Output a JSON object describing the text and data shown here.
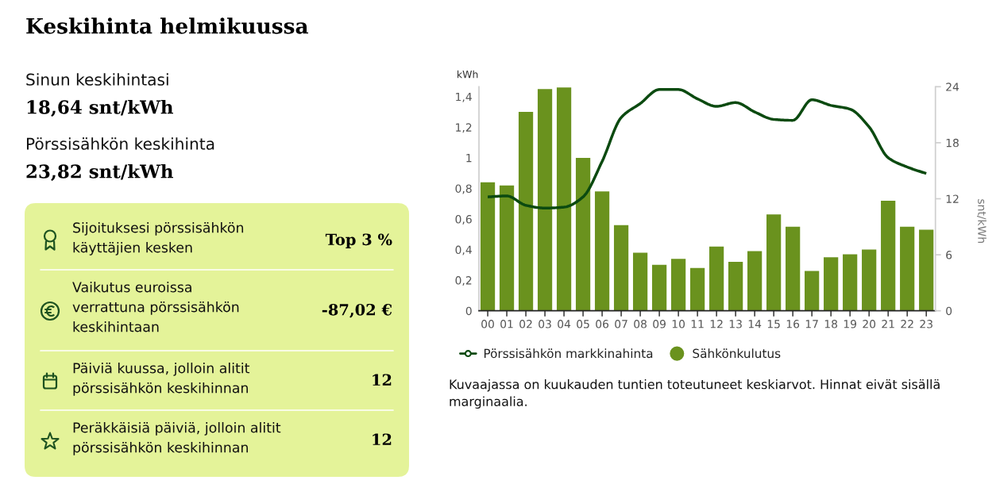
{
  "chart_data": [
    {
      "type": "other",
      "title": "Keskihinta helmikuussa",
      "annotations": [
        "Sinun keskihintasi",
        "18,64 snt/kWh",
        "Pörssisähkön keskihinta",
        "23,82 snt/kWh",
        "Sijoituksesi pörssisähkön\nkäyttäjien kesken",
        "Top 3 %",
        "Vaikutus euroissa\nverrattuna pörssisähkön\nkeskihintaan",
        "-87,02 €",
        "Päiviä kuussa, jolloin alitit\npörssisähkön keskihinnan",
        "12",
        "Peräkkäisiä päiviä, jolloin alitit\npörssisähkön keskihinnan",
        "12"
      ]
    },
    {
      "type": "bar",
      "categories": [
        "00",
        "01",
        "02",
        "03",
        "04",
        "05",
        "06",
        "07",
        "08",
        "09",
        "10",
        "11",
        "12",
        "13",
        "14",
        "15",
        "16",
        "17",
        "18",
        "19",
        "20",
        "21",
        "22",
        "23"
      ],
      "ylabel": "kWh",
      "y2label": "snt/kWh",
      "ylim": [
        0,
        1.465
      ],
      "yticks": [
        0,
        {
          "value": 0.2,
          "label": "0,2"
        },
        {
          "value": 0.4,
          "label": "0,4"
        },
        {
          "value": 0.6,
          "label": "0,6"
        },
        {
          "value": 0.8,
          "label": "0,8"
        },
        1,
        {
          "value": 1.2,
          "label": "1,2"
        },
        {
          "value": 1.4,
          "label": "1,4"
        }
      ],
      "y2lim": [
        0,
        24
      ],
      "y2ticks": [
        0,
        6,
        12,
        18,
        24
      ],
      "series": [
        {
          "name": "Pörssisähkön markkinahinta",
          "type": "line",
          "axis": "y2",
          "color": "#0b4a10",
          "values": [
            12.2,
            12.3,
            11.3,
            11.0,
            11.1,
            12.2,
            16.0,
            20.7,
            22.2,
            23.7,
            23.7,
            22.7,
            21.9,
            22.3,
            21.3,
            20.5,
            20.4,
            22.6,
            22.0,
            21.6,
            19.7,
            16.4,
            15.4,
            14.7
          ]
        },
        {
          "name": "Sähkönkulutus",
          "type": "bar",
          "color": "#6a921e",
          "values": [
            0.84,
            0.82,
            1.3,
            1.45,
            1.46,
            1.0,
            0.78,
            0.56,
            0.38,
            0.3,
            0.34,
            0.28,
            0.42,
            0.32,
            0.39,
            0.63,
            0.55,
            0.26,
            0.35,
            0.37,
            0.4,
            0.72,
            0.55,
            0.53
          ]
        }
      ],
      "grid": false,
      "legend": "bottom",
      "annotations": [
        "Kuvaajassa on kuukauden tuntien toteutuneet keskiarvot. Hinnat eivät sisällä marginaalia."
      ]
    }
  ]
}
